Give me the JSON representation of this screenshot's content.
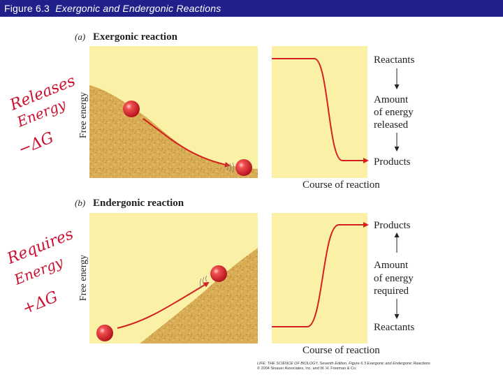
{
  "header": {
    "title_prefix": "Figure 6.3",
    "title_main": "Exergonic and Endergonic Reactions"
  },
  "panel_a": {
    "letter": "(a)",
    "title": "Exergonic reaction",
    "ylabel": "Free energy",
    "xlabel": "Course of reaction",
    "top_label": "Reactants",
    "mid_label": [
      "Amount",
      "of energy",
      "released"
    ],
    "bottom_label": "Products"
  },
  "panel_b": {
    "letter": "(b)",
    "title": "Endergonic reaction",
    "ylabel": "Free energy",
    "xlabel": "Course of reaction",
    "top_label": "Products",
    "mid_label": [
      "Amount",
      "of energy",
      "required"
    ],
    "bottom_label": "Reactants"
  },
  "annotations": {
    "a": [
      "Releases",
      "Energy",
      "−ΔG"
    ],
    "b": [
      "Requires",
      "Energy",
      "+ΔG"
    ]
  },
  "credit": {
    "line1": "LIFE: THE SCIENCE OF BIOLOGY, Seventh Edition, Figure 6.3 Exergonic and Endergonic Reactions",
    "line2": "© 2004 Sinauer Associates, Inc. and W. H. Freeman & Co."
  },
  "colors": {
    "header": "#20208a",
    "panel": "#fbf1a6",
    "hill": "#d9ad55",
    "arrow": "#d42020",
    "ball": "#e2282e",
    "ink": "#cc1030"
  }
}
